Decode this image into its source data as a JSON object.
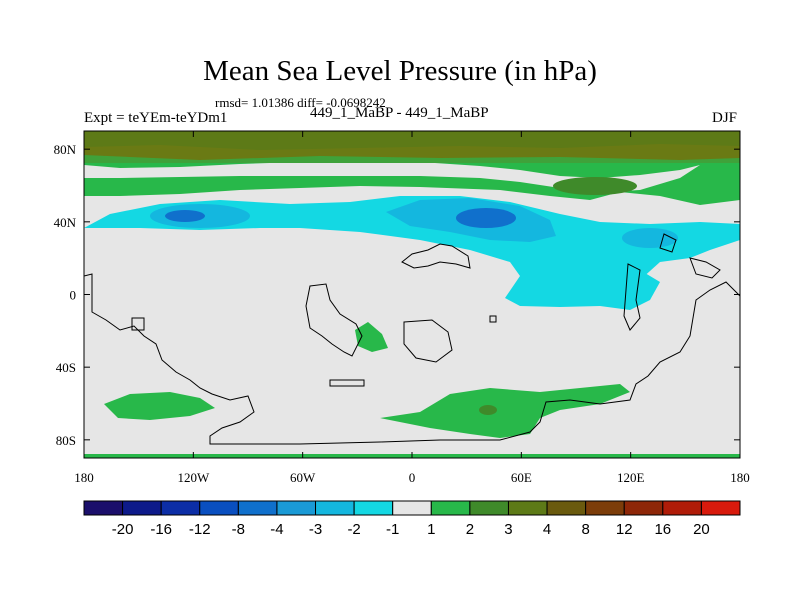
{
  "chart_data": {
    "type": "contour-map",
    "title": "Mean Sea Level Pressure (in hPa)",
    "stats_line": "rmsd= 1.01386  diff= -0.0698242",
    "experiment": "Expt = teYEm-teYDm1",
    "comparison": "449_1_MaBP - 449_1_MaBP",
    "season": "DJF",
    "x_axis": {
      "range": [
        -180,
        180
      ],
      "ticks": [
        -180,
        -120,
        -60,
        0,
        60,
        120,
        180
      ],
      "tick_labels": [
        "180",
        "120W",
        "60W",
        "0",
        "60E",
        "120E",
        "180"
      ]
    },
    "y_axis": {
      "range": [
        -90,
        90
      ],
      "ticks": [
        80,
        40,
        0,
        -40,
        -80
      ],
      "tick_labels": [
        "80N",
        "40N",
        "0",
        "40S",
        "80S"
      ]
    },
    "colorbar": {
      "labels": [
        "-20",
        "-16",
        "-12",
        "-8",
        "-4",
        "-3",
        "-2",
        "-1",
        "1",
        "2",
        "3",
        "4",
        "8",
        "12",
        "16",
        "20"
      ],
      "colors": [
        "#1b0f6b",
        "#0d1a8a",
        "#0c2ea6",
        "#0a4fc0",
        "#1070cc",
        "#1a9ad6",
        "#14b7df",
        "#14d8e3",
        "#e6e6e6",
        "#28b84a",
        "#3f8a2a",
        "#5d7a17",
        "#6a5a0e",
        "#7c3d0a",
        "#8e2708",
        "#b01c08",
        "#d81a0c"
      ]
    },
    "regions": [
      {
        "level": "-1 to -2",
        "where": "broad band near 30-45N across Pacific/Atlantic, tropical Indian Ocean"
      },
      {
        "level": "-2 to -3",
        "where": "North Pacific near 40N, North Atlantic / Europe near 40N"
      },
      {
        "level": "-3 to -4",
        "where": "eastern Mediterranean / central Asia near 40N"
      },
      {
        "level": "1 to 2",
        "where": "60-70N band, Southern Ocean patches near 60-70S"
      },
      {
        "level": "3 to 4",
        "where": "Arctic cap north of 75N"
      }
    ]
  }
}
